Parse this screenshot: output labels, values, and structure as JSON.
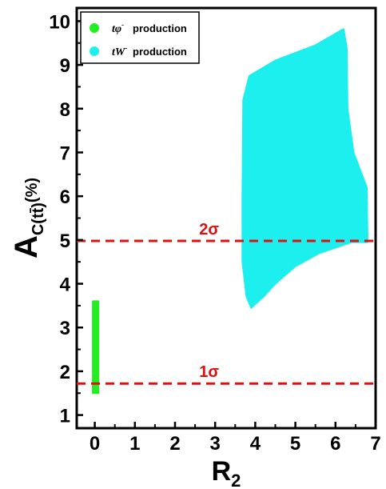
{
  "chart_data": {
    "type": "scatter",
    "xlabel": "R",
    "xlabel_sub": "2",
    "ylabel": "A",
    "ylabel_sub": "C(tt̄)",
    "ylabel_unit": "(%)",
    "xlim": [
      -0.45,
      7
    ],
    "ylim": [
      0.7,
      10.3
    ],
    "xticks": [
      "0",
      "1",
      "2",
      "3",
      "4",
      "5",
      "6",
      "7"
    ],
    "yticks": [
      "1",
      "2",
      "3",
      "4",
      "5",
      "6",
      "7",
      "8",
      "9",
      "10"
    ],
    "grid": false,
    "legend_position": "top-left",
    "series": [
      {
        "name": "production",
        "symbol": "tφ",
        "symbol_sup": "-",
        "color": "#22ee22",
        "region": [
          [
            -0.05,
            3.6
          ],
          [
            0.09,
            3.6
          ],
          [
            0.09,
            1.5
          ],
          [
            -0.05,
            1.5
          ]
        ]
      },
      {
        "name": "production",
        "symbol": "tW",
        "symbol_sup": "-",
        "color": "#1deeee",
        "region": [
          [
            3.7,
            8.2
          ],
          [
            3.85,
            8.75
          ],
          [
            4.5,
            9.1
          ],
          [
            5.5,
            9.45
          ],
          [
            6.2,
            9.82
          ],
          [
            6.28,
            9.4
          ],
          [
            6.3,
            8.0
          ],
          [
            6.45,
            7.0
          ],
          [
            6.78,
            6.2
          ],
          [
            6.8,
            4.95
          ],
          [
            6.4,
            4.95
          ],
          [
            5.6,
            4.7
          ],
          [
            5.0,
            4.4
          ],
          [
            4.5,
            4.0
          ],
          [
            4.2,
            3.7
          ],
          [
            3.9,
            3.45
          ],
          [
            3.78,
            3.7
          ],
          [
            3.68,
            4.5
          ],
          [
            3.68,
            6.0
          ]
        ]
      }
    ],
    "reference_lines": [
      {
        "y": 4.98,
        "label": "2σ",
        "color": "#dd1111",
        "style": "dashed"
      },
      {
        "y": 1.72,
        "label": "1σ",
        "color": "#dd1111",
        "style": "dashed"
      }
    ]
  }
}
